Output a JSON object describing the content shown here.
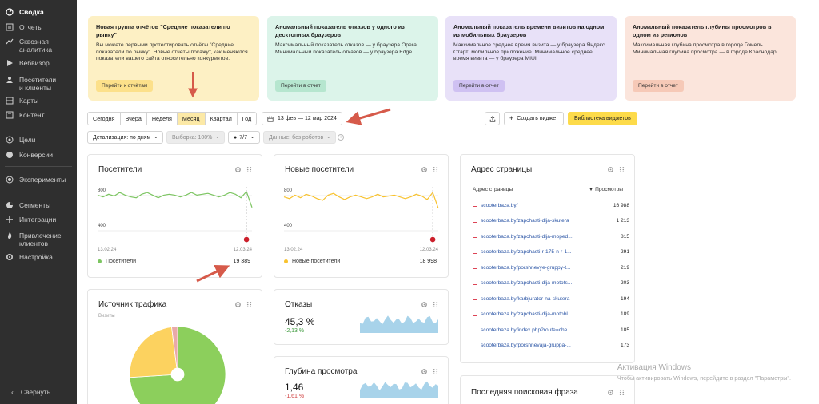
{
  "sidebar": {
    "items": [
      {
        "label": "Сводка",
        "icon": "speedometer-icon"
      },
      {
        "label": "Отчеты",
        "icon": "reports-icon"
      },
      {
        "label": "Сквозная\nаналитика",
        "icon": "analytics-icon"
      },
      {
        "label": "Вебвизор",
        "icon": "play-icon"
      },
      {
        "label": "Посетители\nи клиенты",
        "icon": "users-icon"
      },
      {
        "label": "Карты",
        "icon": "map-icon"
      },
      {
        "label": "Контент",
        "icon": "content-icon"
      },
      {
        "label": "Цели",
        "icon": "target-icon"
      },
      {
        "label": "Конверсии",
        "icon": "conversions-icon"
      },
      {
        "label": "Эксперименты",
        "icon": "experiments-icon"
      },
      {
        "label": "Сегменты",
        "icon": "segments-icon"
      },
      {
        "label": "Интеграции",
        "icon": "integrations-icon"
      },
      {
        "label": "Привлечение\nклиентов",
        "icon": "fire-icon"
      },
      {
        "label": "Настройка",
        "icon": "gear-icon"
      }
    ],
    "collapse_label": "Свернуть"
  },
  "news_cards": [
    {
      "title": "Новая группа отчётов \"Средние показатели по рынку\"",
      "text": "Вы можете первыми протестировать отчёты \"Средние показатели по рынку\". Новые отчёты покажут, как меняются показатели вашего сайта относительно конкурентов.",
      "button": "Перейти к отчётам",
      "bg": "#fdf0c4",
      "btn_bg": "#fce08a"
    },
    {
      "title": "Аномальный показатель отказов у одного из десктопных браузеров",
      "text": "Максимальный показатель отказов — у браузера Opera. Минимальный показатель отказов — у браузера Edge.",
      "button": "Перейти в отчет",
      "bg": "#dcf4ea",
      "btn_bg": "#b6e6cf"
    },
    {
      "title": "Аномальный показатель времени визитов на одном из мобильных браузеров",
      "text": "Максимальное среднее время визита — у браузера Яндекс Старт: мобильное приложение. Минимальное среднее время визита — у браузера MIUI.",
      "button": "Перейти в отчет",
      "bg": "#e8e1f8",
      "btn_bg": "#cfc1f2"
    },
    {
      "title": "Аномальный показатель глубины просмотров в одном из регионов",
      "text": "Максимальная глубина просмотра в городе Гомель. Минимальная глубина просмотра — в городе Краснодар.",
      "button": "Перейти в отчет",
      "bg": "#fbe5dc",
      "btn_bg": "#f6c9b7"
    }
  ],
  "period_tabs": [
    "Сегодня",
    "Вчера",
    "Неделя",
    "Месяц",
    "Квартал",
    "Год"
  ],
  "period_selected": "Месяц",
  "date_range": "13 фев — 12 мар 2024",
  "create_widget": "Создать виджет",
  "widget_library": "Библиотека виджетов",
  "filters": {
    "detail": "Детализация: по дням",
    "sample": "Выборка: 100%",
    "counter": "7/7",
    "data": "Данные: без роботов"
  },
  "visitors": {
    "title": "Посетители",
    "y_ticks": [
      "800",
      "400"
    ],
    "x_start": "13.02.24",
    "x_end": "12.03.24",
    "legend": "Посетители",
    "total": "19 389",
    "color": "#7cc561"
  },
  "new_visitors": {
    "title": "Новые посетители",
    "y_ticks": [
      "800",
      "400"
    ],
    "x_start": "13.02.24",
    "x_end": "12.03.24",
    "legend": "Новые посетители",
    "total": "18 998",
    "color": "#f8c22e"
  },
  "traffic": {
    "title": "Источник трафика",
    "subtitle": "Визиты"
  },
  "bounce": {
    "title": "Отказы",
    "value": "45,3 %",
    "delta": "-2,13 %"
  },
  "depth": {
    "title": "Глубина просмотра",
    "value": "1,46",
    "delta": "-1,61 %"
  },
  "pages": {
    "title": "Адрес страницы",
    "col_url": "Адрес страницы",
    "col_views": "▼ Просмотры",
    "rows": [
      {
        "url": "scooterbaza.by/",
        "views": "16 988"
      },
      {
        "url": "scooterbaza.by/zapchasti-dlja-skutera",
        "views": "1 213"
      },
      {
        "url": "scooterbaza.by/zapchasti-dlja-moped...",
        "views": "815"
      },
      {
        "url": "scooterbaza.by/zapchasti-r-175-n-r-1...",
        "views": "291"
      },
      {
        "url": "scooterbaza.by/porshnevye-gruppy-t...",
        "views": "219"
      },
      {
        "url": "scooterbaza.by/zapchasti-dlja-motots...",
        "views": "203"
      },
      {
        "url": "scooterbaza.by/karbjurator-na-skutera",
        "views": "194"
      },
      {
        "url": "scooterbaza.by/zapchasti-dlja-motobl...",
        "views": "189"
      },
      {
        "url": "scooterbaza.by/index.php?route=che...",
        "views": "185"
      },
      {
        "url": "scooterbaza.by/porshnevaja-gruppa-...",
        "views": "173"
      }
    ]
  },
  "search_phrase": {
    "title": "Последняя поисковая фраза"
  },
  "watermark": {
    "line1": "Активация Windows",
    "line2": "Чтобы активировать Windows, перейдите в раздел \"Параметры\"."
  },
  "chart_data": [
    {
      "type": "line",
      "xlabel": "",
      "ylabel": "",
      "x": [
        "13.02.24",
        "14.02.24",
        "15.02.24",
        "16.02.24",
        "17.02.24",
        "18.02.24",
        "19.02.24",
        "20.02.24",
        "21.02.24",
        "22.02.24",
        "23.02.24",
        "24.02.24",
        "25.02.24",
        "26.02.24",
        "27.02.24",
        "28.02.24",
        "29.02.24",
        "01.03.24",
        "02.03.24",
        "03.03.24",
        "04.03.24",
        "05.03.24",
        "06.03.24",
        "07.03.24",
        "08.03.24",
        "09.03.24",
        "10.03.24",
        "11.03.24",
        "12.03.24"
      ],
      "series": [
        {
          "name": "Посетители",
          "values": [
            760,
            740,
            770,
            750,
            790,
            760,
            740,
            730,
            770,
            790,
            760,
            730,
            760,
            770,
            760,
            740,
            760,
            790,
            760,
            770,
            780,
            760,
            740,
            760,
            790,
            770,
            730,
            800,
            620
          ]
        }
      ],
      "ylim": [
        200,
        900
      ]
    },
    {
      "type": "line",
      "xlabel": "",
      "ylabel": "",
      "x": [
        "13.02.24",
        "14.02.24",
        "15.02.24",
        "16.02.24",
        "17.02.24",
        "18.02.24",
        "19.02.24",
        "20.02.24",
        "21.02.24",
        "22.02.24",
        "23.02.24",
        "24.02.24",
        "25.02.24",
        "26.02.24",
        "27.02.24",
        "28.02.24",
        "29.02.24",
        "01.03.24",
        "02.03.24",
        "03.03.24",
        "04.03.24",
        "05.03.24",
        "06.03.24",
        "07.03.24",
        "08.03.24",
        "09.03.24",
        "10.03.24",
        "11.03.24",
        "12.03.24"
      ],
      "series": [
        {
          "name": "Новые посетители",
          "values": [
            740,
            720,
            760,
            730,
            770,
            750,
            720,
            700,
            760,
            780,
            740,
            710,
            740,
            760,
            740,
            720,
            740,
            770,
            740,
            750,
            760,
            740,
            720,
            740,
            770,
            750,
            710,
            790,
            610
          ]
        }
      ],
      "ylim": [
        200,
        900
      ]
    },
    {
      "type": "pie",
      "series": [
        {
          "values": [
            74,
            24,
            2
          ]
        }
      ],
      "colors": [
        "#8ccf5c",
        "#fcd25f",
        "#e9a9a9"
      ]
    }
  ]
}
